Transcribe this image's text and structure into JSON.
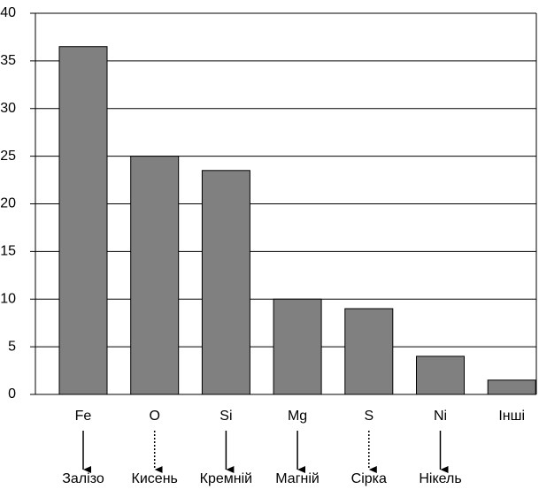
{
  "chart_data": {
    "type": "bar",
    "categories": [
      "Fe",
      "O",
      "Si",
      "Mg",
      "S",
      "Ni",
      "Інші"
    ],
    "element_names": [
      "Залізо",
      "Кисень",
      "Кремній",
      "Магній",
      "Сірка",
      "Нікель",
      null
    ],
    "values": [
      36.5,
      25,
      23.5,
      10,
      9,
      4,
      1.5
    ],
    "color": "#808080",
    "ylim": [
      0,
      40
    ],
    "yticks": [
      0,
      5,
      10,
      15,
      20,
      25,
      30,
      35,
      40
    ],
    "grid": true
  }
}
